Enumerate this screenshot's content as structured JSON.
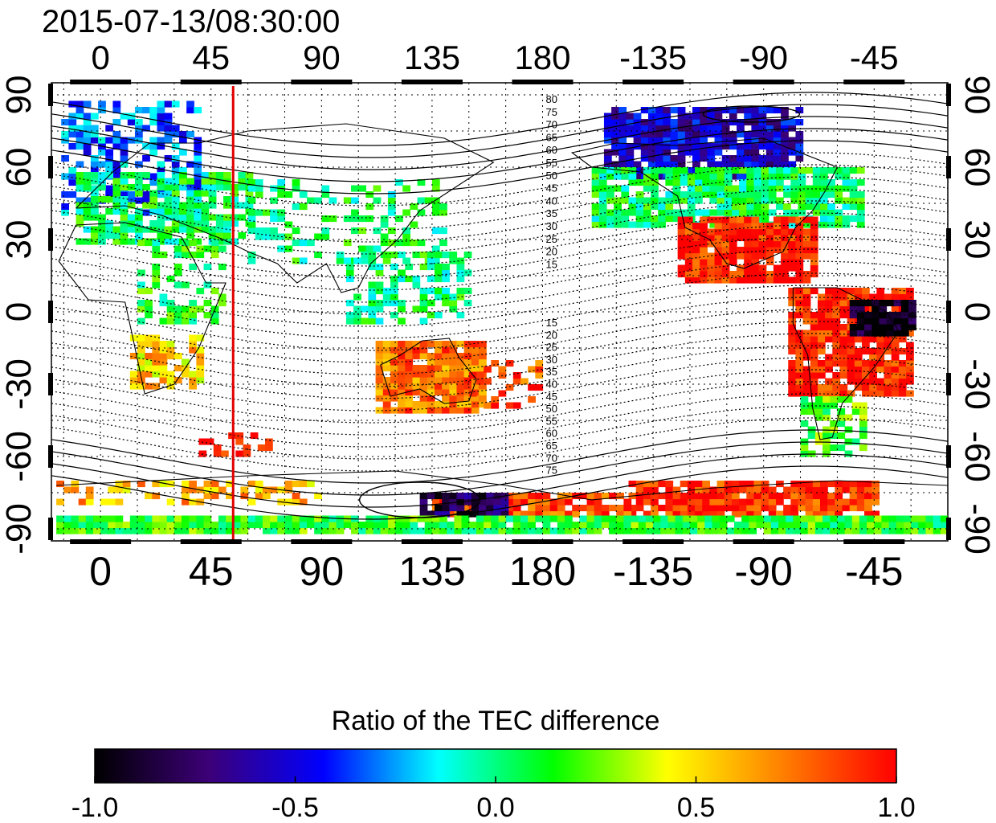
{
  "title": "2015-07-13/08:30:00",
  "map": {
    "lon_ticks": [
      "0",
      "45",
      "90",
      "135",
      "180",
      "-135",
      "-90",
      "-45"
    ],
    "lon_tick_values": [
      0,
      45,
      90,
      135,
      180,
      225,
      270,
      315
    ],
    "lat_ticks": [
      "90",
      "60",
      "30",
      "0",
      "-30",
      "-60",
      "-90"
    ],
    "lat_tick_values": [
      90,
      60,
      30,
      0,
      -30,
      -60,
      -90
    ],
    "lon_range": [
      -20,
      345
    ],
    "lat_range": [
      -95,
      95
    ],
    "marker_longitude": 54,
    "marker_color": "#e00000",
    "grid": "dotted",
    "contour_labels_north": [
      "80",
      "75",
      "70",
      "65",
      "60",
      "55",
      "50",
      "45",
      "40",
      "35",
      "30",
      "25",
      "20",
      "15"
    ],
    "contour_labels_south": [
      "15",
      "20",
      "25",
      "30",
      "35",
      "40",
      "45",
      "50",
      "55",
      "60",
      "65",
      "70",
      "75"
    ]
  },
  "colorbar": {
    "title": "Ratio of the TEC difference",
    "tick_labels": [
      "-1.0",
      "-0.5",
      "0.0",
      "0.5",
      "1.0"
    ],
    "tick_values": [
      -1.0,
      -0.5,
      0.0,
      0.5,
      1.0
    ],
    "colors": [
      "#000000",
      "#3c0078",
      "#0000ff",
      "#00ffff",
      "#00ff00",
      "#ffff00",
      "#ff8000",
      "#ff0000"
    ]
  }
}
